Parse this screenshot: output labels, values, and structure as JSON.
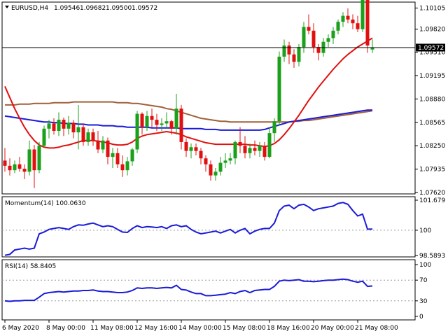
{
  "main": {
    "symbol": "EURUSD,H4",
    "ohlc": [
      "1.09546",
      "1.09682",
      "1.09500",
      "1.09572"
    ],
    "price_tag": "1.09572"
  },
  "momentum": {
    "label": "Momentum(14) 100.0630"
  },
  "rsi": {
    "label": "RSI(14) 58.8405"
  },
  "chart_data": [
    {
      "type": "candlestick",
      "title": "EURUSD,H4",
      "ylim": [
        1.0762,
        1.101
      ],
      "y_ticks": [
        "1.10105",
        "1.09820",
        "1.09510",
        "1.09195",
        "1.08880",
        "1.08565",
        "1.08250",
        "1.07935",
        "1.07620"
      ],
      "x_ticks": [
        "6 May 2020",
        "8 May 00:00",
        "11 May 08:00",
        "12 May 16:00",
        "14 May 00:00",
        "15 May 08:00",
        "18 May 16:00",
        "20 May 00:00",
        "21 May 08:00"
      ],
      "current_price": 1.09572,
      "colors": {
        "up": "#1aa01a",
        "down": "#e01010",
        "ma_fast": "#e01010",
        "ma_mid": "#1a1ad8",
        "ma_slow": "#a0603a"
      },
      "candles": [
        [
          1.0805,
          1.0822,
          1.079,
          1.0798
        ],
        [
          1.0798,
          1.0808,
          1.0785,
          1.0792
        ],
        [
          1.0792,
          1.0805,
          1.0788,
          1.08
        ],
        [
          1.08,
          1.081,
          1.079,
          1.0794
        ],
        [
          1.0794,
          1.08,
          1.078,
          1.079
        ],
        [
          1.079,
          1.0832,
          1.0785,
          1.082
        ],
        [
          1.082,
          1.0826,
          1.0768,
          1.0792
        ],
        [
          1.0792,
          1.083,
          1.0788,
          1.0825
        ],
        [
          1.0825,
          1.0852,
          1.0822,
          1.0848
        ],
        [
          1.0848,
          1.086,
          1.0835,
          1.0855
        ],
        [
          1.0855,
          1.0862,
          1.084,
          1.0845
        ],
        [
          1.0845,
          1.087,
          1.0838,
          1.086
        ],
        [
          1.086,
          1.0863,
          1.0838,
          1.0848
        ],
        [
          1.0848,
          1.0865,
          1.084,
          1.0856
        ],
        [
          1.0856,
          1.086,
          1.0835,
          1.0843
        ],
        [
          1.0843,
          1.088,
          1.082,
          1.085
        ],
        [
          1.085,
          1.0855,
          1.0825,
          1.083
        ],
        [
          1.083,
          1.0848,
          1.0825,
          1.0843
        ],
        [
          1.0843,
          1.0848,
          1.0825,
          1.0832
        ],
        [
          1.0832,
          1.0845,
          1.0815,
          1.082
        ],
        [
          1.082,
          1.0838,
          1.0815,
          1.0832
        ],
        [
          1.0832,
          1.0836,
          1.08,
          1.081
        ],
        [
          1.081,
          1.0822,
          1.0795,
          1.0815
        ],
        [
          1.0815,
          1.0822,
          1.0795,
          1.08
        ],
        [
          1.08,
          1.0812,
          1.0783,
          1.0792
        ],
        [
          1.0792,
          1.081,
          1.0785,
          1.0804
        ],
        [
          1.0804,
          1.0822,
          1.0798,
          1.082
        ],
        [
          1.082,
          1.0872,
          1.0815,
          1.0868
        ],
        [
          1.0868,
          1.087,
          1.084,
          1.085
        ],
        [
          1.085,
          1.0872,
          1.0845,
          1.0865
        ],
        [
          1.0865,
          1.0875,
          1.085,
          1.086
        ],
        [
          1.086,
          1.0868,
          1.0845,
          1.0853
        ],
        [
          1.0853,
          1.0862,
          1.0845,
          1.0855
        ],
        [
          1.0855,
          1.087,
          1.0848,
          1.0858
        ],
        [
          1.0858,
          1.086,
          1.084,
          1.0848
        ],
        [
          1.0848,
          1.0895,
          1.084,
          1.0875
        ],
        [
          1.0875,
          1.088,
          1.082,
          1.083
        ],
        [
          1.083,
          1.0835,
          1.081,
          1.0818
        ],
        [
          1.0818,
          1.0828,
          1.0808,
          1.0823
        ],
        [
          1.0823,
          1.0828,
          1.0812,
          1.0818
        ],
        [
          1.0818,
          1.0822,
          1.08,
          1.0808
        ],
        [
          1.0808,
          1.0812,
          1.079,
          1.08
        ],
        [
          1.08,
          1.0805,
          1.0778,
          1.0785
        ],
        [
          1.0785,
          1.0795,
          1.0778,
          1.079
        ],
        [
          1.079,
          1.081,
          1.0785,
          1.0802
        ],
        [
          1.0802,
          1.0815,
          1.0795,
          1.0805
        ],
        [
          1.0805,
          1.0815,
          1.08,
          1.0808
        ],
        [
          1.0808,
          1.0832,
          1.08,
          1.083
        ],
        [
          1.083,
          1.085,
          1.0815,
          1.0825
        ],
        [
          1.0825,
          1.0838,
          1.0808,
          1.0815
        ],
        [
          1.0815,
          1.0828,
          1.0808,
          1.0822
        ],
        [
          1.0822,
          1.0832,
          1.0812,
          1.0818
        ],
        [
          1.0818,
          1.083,
          1.081,
          1.0825
        ],
        [
          1.0825,
          1.083,
          1.0805,
          1.081
        ],
        [
          1.081,
          1.085,
          1.0808,
          1.0842
        ],
        [
          1.0842,
          1.0862,
          1.083,
          1.0858
        ],
        [
          1.0858,
          1.0952,
          1.0852,
          1.0945
        ],
        [
          1.0945,
          1.0968,
          1.0938,
          1.096
        ],
        [
          1.096,
          1.0965,
          1.0935,
          1.0948
        ],
        [
          1.0948,
          1.0955,
          1.093,
          1.0938
        ],
        [
          1.0938,
          1.0962,
          1.0932,
          1.0958
        ],
        [
          1.0958,
          1.0992,
          1.095,
          1.0985
        ],
        [
          1.0985,
          1.1002,
          1.0975,
          1.098
        ],
        [
          1.098,
          1.099,
          1.095,
          1.0958
        ],
        [
          1.0958,
          1.0962,
          1.094,
          1.095
        ],
        [
          1.095,
          1.097,
          1.0945,
          1.0965
        ],
        [
          1.0965,
          1.0975,
          1.0958,
          1.097
        ],
        [
          1.097,
          1.0985,
          1.0962,
          1.098
        ],
        [
          1.098,
          1.0995,
          1.0975,
          1.0992
        ],
        [
          1.0992,
          1.1005,
          1.0985,
          1.1
        ],
        [
          1.1,
          1.101,
          1.099,
          1.0995
        ],
        [
          1.0995,
          1.1002,
          1.0982,
          1.099
        ],
        [
          1.099,
          1.1,
          1.0978,
          1.0982
        ],
        [
          1.0982,
          1.103,
          1.0978,
          1.1025
        ],
        [
          1.1025,
          1.1028,
          1.095,
          1.096
        ],
        [
          1.09546,
          1.09682,
          1.095,
          1.09572
        ]
      ],
      "ma_fast": [
        1.0905,
        1.089,
        1.0875,
        1.0862,
        1.085,
        1.084,
        1.0832,
        1.0826,
        1.0823,
        1.0822,
        1.0822,
        1.0823,
        1.0825,
        1.0826,
        1.0828,
        1.083,
        1.0832,
        1.0832,
        1.0832,
        1.0831,
        1.083,
        1.0829,
        1.0827,
        1.0826,
        1.0826,
        1.0827,
        1.083,
        1.0835,
        1.0838,
        1.084,
        1.0841,
        1.0842,
        1.0843,
        1.0844,
        1.0843,
        1.0842,
        1.084,
        1.0837,
        1.0835,
        1.0833,
        1.0831,
        1.0829,
        1.0828,
        1.0827,
        1.0827,
        1.0827,
        1.0827,
        1.0827,
        1.0827,
        1.0827,
        1.0826,
        1.0826,
        1.0825,
        1.0824,
        1.0825,
        1.0828,
        1.0833,
        1.084,
        1.0848,
        1.0857,
        1.0866,
        1.0876,
        1.0886,
        1.0895,
        1.0904,
        1.0912,
        1.092,
        1.0928,
        1.0935,
        1.0942,
        1.0948,
        1.0953,
        1.0958,
        1.0962,
        1.0966,
        1.097
      ],
      "ma_mid": [
        1.0865,
        1.0864,
        1.0863,
        1.0862,
        1.0861,
        1.086,
        1.0859,
        1.0858,
        1.0857,
        1.0857,
        1.0856,
        1.0856,
        1.0855,
        1.0855,
        1.0855,
        1.0854,
        1.0854,
        1.0853,
        1.0853,
        1.0853,
        1.0852,
        1.0852,
        1.0852,
        1.0851,
        1.0851,
        1.085,
        1.085,
        1.085,
        1.085,
        1.085,
        1.0849,
        1.0849,
        1.0849,
        1.0849,
        1.0849,
        1.0849,
        1.0848,
        1.0848,
        1.0848,
        1.0848,
        1.0848,
        1.0847,
        1.0847,
        1.0847,
        1.0846,
        1.0846,
        1.0846,
        1.0846,
        1.0846,
        1.0846,
        1.0846,
        1.0846,
        1.0846,
        1.0847,
        1.0849,
        1.0851,
        1.0853,
        1.0855,
        1.0857,
        1.0858,
        1.0859,
        1.086,
        1.0861,
        1.0862,
        1.0863,
        1.0864,
        1.0865,
        1.0866,
        1.0867,
        1.0868,
        1.0869,
        1.087,
        1.0871,
        1.0872,
        1.0873,
        1.0873
      ],
      "ma_slow": [
        1.088,
        1.088,
        1.088,
        1.0881,
        1.0881,
        1.0881,
        1.0882,
        1.0882,
        1.0882,
        1.0882,
        1.0883,
        1.0883,
        1.0883,
        1.0883,
        1.0884,
        1.0884,
        1.0884,
        1.0884,
        1.0884,
        1.0884,
        1.0884,
        1.0884,
        1.0884,
        1.0883,
        1.0883,
        1.0883,
        1.0882,
        1.0882,
        1.0881,
        1.088,
        1.0879,
        1.0878,
        1.0877,
        1.0875,
        1.0874,
        1.0872,
        1.087,
        1.0868,
        1.0866,
        1.0864,
        1.0862,
        1.0861,
        1.086,
        1.0859,
        1.0858,
        1.0858,
        1.0857,
        1.0857,
        1.0857,
        1.0857,
        1.0857,
        1.0857,
        1.0857,
        1.0857,
        1.0857,
        1.0857,
        1.0857,
        1.0857,
        1.0857,
        1.0858,
        1.0858,
        1.0859,
        1.0859,
        1.086,
        1.0861,
        1.0862,
        1.0863,
        1.0864,
        1.0865,
        1.0866,
        1.0867,
        1.0868,
        1.0869,
        1.087,
        1.0871,
        1.0872
      ]
    },
    {
      "type": "line",
      "title": "Momentum(14) 100.0630",
      "ylim": [
        98.5893,
        101.679
      ],
      "y_ticks": [
        "101.679",
        "100",
        "98.5893"
      ],
      "reference_level": 100,
      "color": "#1a1ad8",
      "values": [
        98.6,
        98.65,
        98.9,
        98.95,
        99.0,
        98.95,
        99.0,
        99.8,
        99.9,
        100.05,
        100.1,
        100.15,
        100.1,
        100.05,
        100.2,
        100.3,
        100.28,
        100.35,
        100.4,
        100.3,
        100.2,
        100.25,
        100.2,
        100.05,
        99.9,
        99.88,
        100.1,
        100.25,
        100.15,
        100.2,
        100.18,
        100.15,
        100.2,
        100.1,
        100.25,
        100.3,
        100.2,
        100.25,
        100.05,
        99.9,
        99.8,
        99.85,
        99.9,
        99.95,
        99.85,
        99.95,
        100.05,
        99.85,
        100.0,
        100.1,
        99.8,
        99.95,
        100.05,
        100.1,
        100.1,
        100.4,
        101.1,
        101.35,
        101.4,
        101.2,
        101.4,
        101.45,
        101.3,
        101.1,
        101.2,
        101.25,
        101.3,
        101.35,
        101.5,
        101.55,
        101.45,
        101.1,
        100.8,
        100.9,
        100.06,
        100.063
      ]
    },
    {
      "type": "line",
      "title": "RSI(14) 58.8405",
      "ylim": [
        0,
        100
      ],
      "y_ticks": [
        "100",
        "70",
        "30",
        "0"
      ],
      "levels": [
        70,
        30
      ],
      "color": "#1a1ad8",
      "values": [
        30,
        29,
        30,
        30,
        31,
        31,
        31,
        37,
        44,
        46,
        47,
        48,
        47,
        48,
        49,
        49,
        50,
        50,
        51,
        49,
        48,
        48,
        47,
        46,
        46,
        47,
        50,
        55,
        54,
        55,
        55,
        54,
        55,
        56,
        55,
        60,
        52,
        51,
        47,
        44,
        44,
        40,
        40,
        41,
        42,
        43,
        46,
        44,
        48,
        50,
        46,
        50,
        51,
        52,
        52,
        58,
        68,
        70,
        69,
        70,
        71,
        68,
        68,
        67,
        68,
        69,
        70,
        70,
        71,
        72,
        71,
        68,
        66,
        68,
        58,
        58.84
      ]
    }
  ]
}
